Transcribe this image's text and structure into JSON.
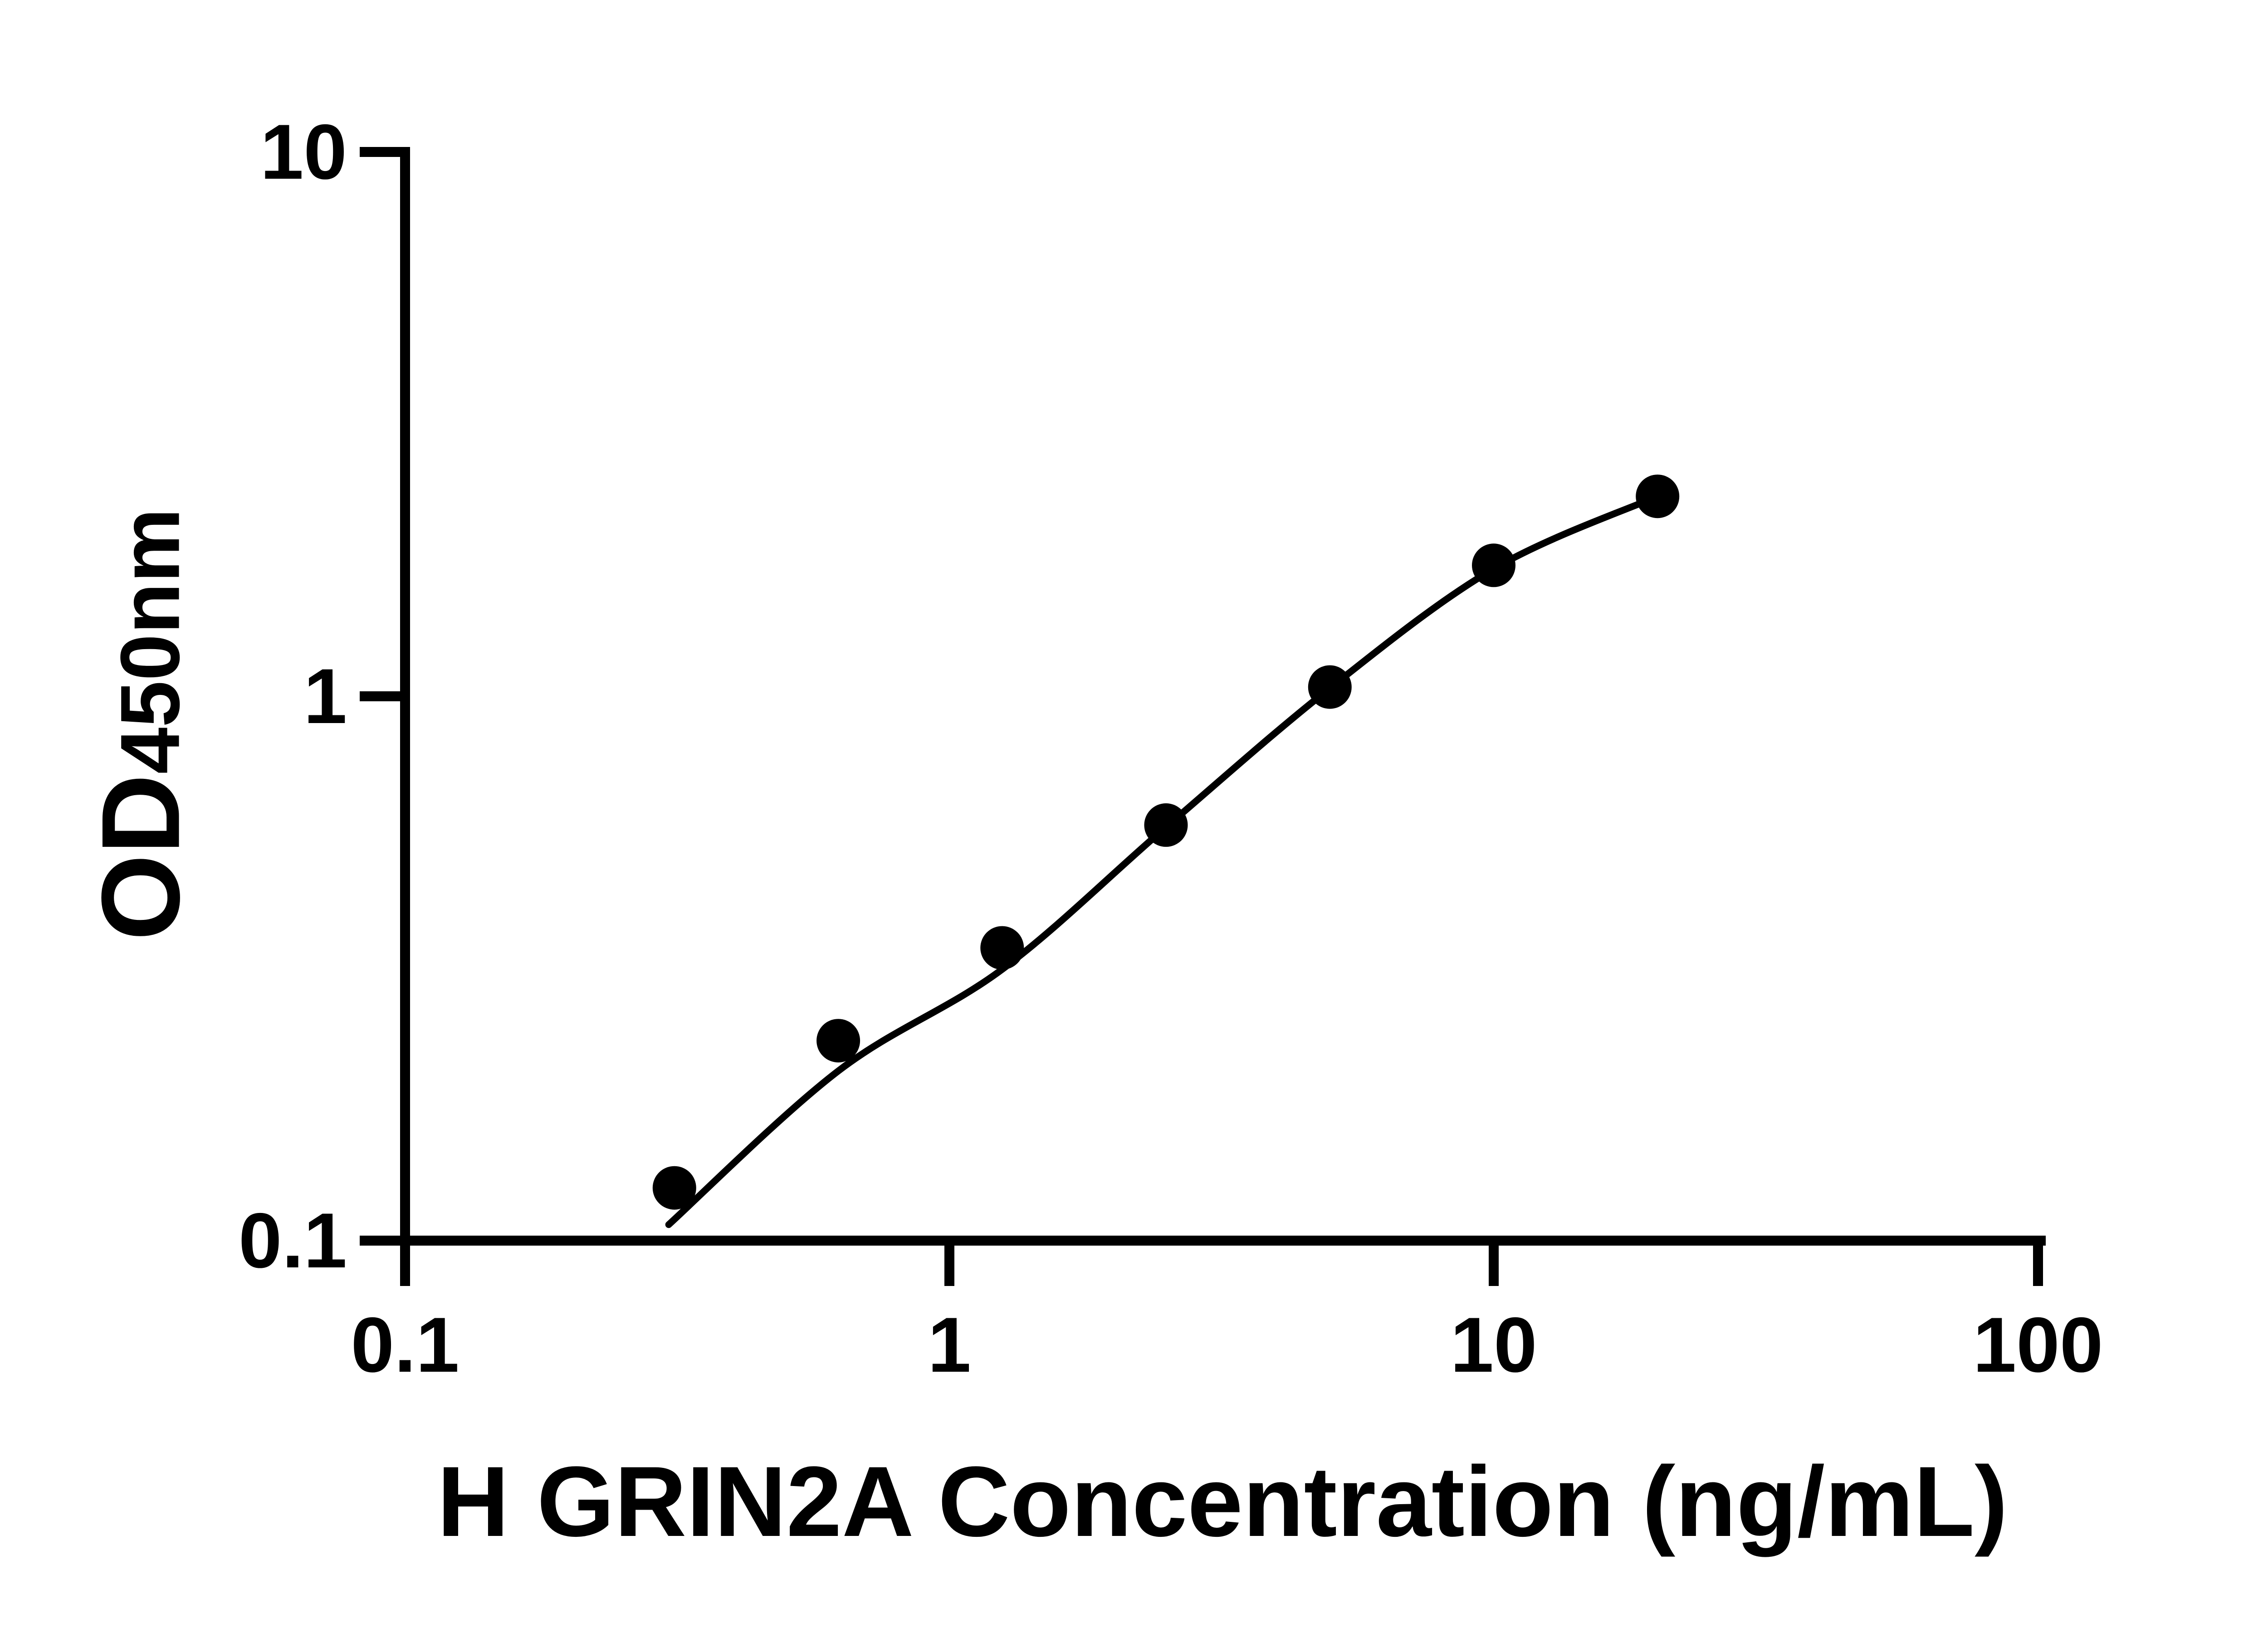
{
  "background_color": "#ffffff",
  "chart_data": {
    "type": "scatter",
    "subtype": "log-log ELISA standard curve with fitted line",
    "title": "",
    "xlabel": "H GRIN2A Concentration (ng/mL)",
    "ylabel": {
      "main": "OD",
      "sub": "450nm"
    },
    "x_scale": "log10",
    "y_scale": "log10",
    "xlim": [
      0.1,
      100
    ],
    "ylim": [
      0.1,
      10
    ],
    "x_ticks": [
      {
        "v": 0.1,
        "label": "0.1"
      },
      {
        "v": 1,
        "label": "1"
      },
      {
        "v": 10,
        "label": "10"
      },
      {
        "v": 100,
        "label": "100"
      }
    ],
    "y_ticks": [
      {
        "v": 0.1,
        "label": "0.1"
      },
      {
        "v": 1,
        "label": "1"
      },
      {
        "v": 10,
        "label": "10"
      }
    ],
    "points": {
      "x": [
        0.3125,
        0.625,
        1.25,
        2.5,
        5,
        10,
        20
      ],
      "y": [
        0.125,
        0.233,
        0.345,
        0.58,
        1.04,
        1.74,
        2.33
      ]
    },
    "fit_curve": {
      "x": [
        0.305,
        0.625,
        1.25,
        2.5,
        5,
        10,
        20
      ],
      "y": [
        0.107,
        0.205,
        0.315,
        0.575,
        1.035,
        1.715,
        2.33
      ]
    },
    "grid": false,
    "legend": null,
    "colors": {
      "marker": "#000000",
      "line": "#000000",
      "axis": "#000000",
      "text": "#000000"
    }
  }
}
